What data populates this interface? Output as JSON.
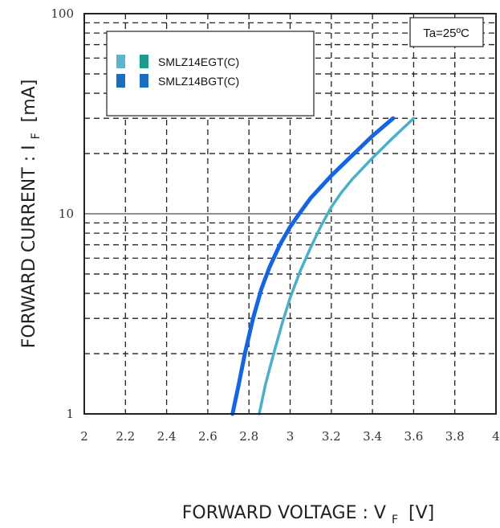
{
  "chart_data": {
    "type": "line",
    "title": "",
    "xlabel": "FORWARD VOLTAGE : V",
    "xlabel_sub": "F",
    "xlabel_unit": "[V]",
    "ylabel": "FORWARD CURRENT : I",
    "ylabel_sub": "F",
    "ylabel_unit": "[mA]",
    "xlim": [
      2,
      4
    ],
    "ylim": [
      1,
      100
    ],
    "yscale": "log",
    "grid": true,
    "legend_position": "top-left",
    "annotation": "Ta=25ºC",
    "x_ticks": [
      "2",
      "2.2",
      "2.4",
      "2.6",
      "2.8",
      "3",
      "3.2",
      "3.4",
      "3.6",
      "3.8",
      "4"
    ],
    "y_ticks": [
      "1",
      "10",
      "100"
    ],
    "series": [
      {
        "name": "SMLZ14EGT(C)",
        "color": "#4bafc8",
        "swatch_colors": [
          "#5bb5cc",
          "#1e9a8a"
        ],
        "x": [
          2.85,
          2.88,
          2.92,
          2.96,
          3.0,
          3.05,
          3.1,
          3.15,
          3.2,
          3.25,
          3.3,
          3.4,
          3.5,
          3.6
        ],
        "y": [
          1.0,
          1.4,
          2.0,
          2.8,
          3.8,
          5.2,
          6.8,
          8.7,
          10.8,
          12.8,
          14.8,
          19.0,
          24.0,
          30.0
        ]
      },
      {
        "name": "SMLZ14BGT(C)",
        "color": "#1565e0",
        "swatch_colors": [
          "#1a6ec0",
          "#1a6ec0"
        ],
        "x": [
          2.72,
          2.75,
          2.78,
          2.82,
          2.86,
          2.9,
          2.95,
          3.0,
          3.05,
          3.1,
          3.2,
          3.3,
          3.4,
          3.5
        ],
        "y": [
          1.0,
          1.4,
          2.0,
          3.0,
          4.2,
          5.4,
          7.0,
          8.6,
          10.2,
          12.0,
          15.5,
          19.5,
          24.5,
          30.0
        ]
      }
    ]
  }
}
